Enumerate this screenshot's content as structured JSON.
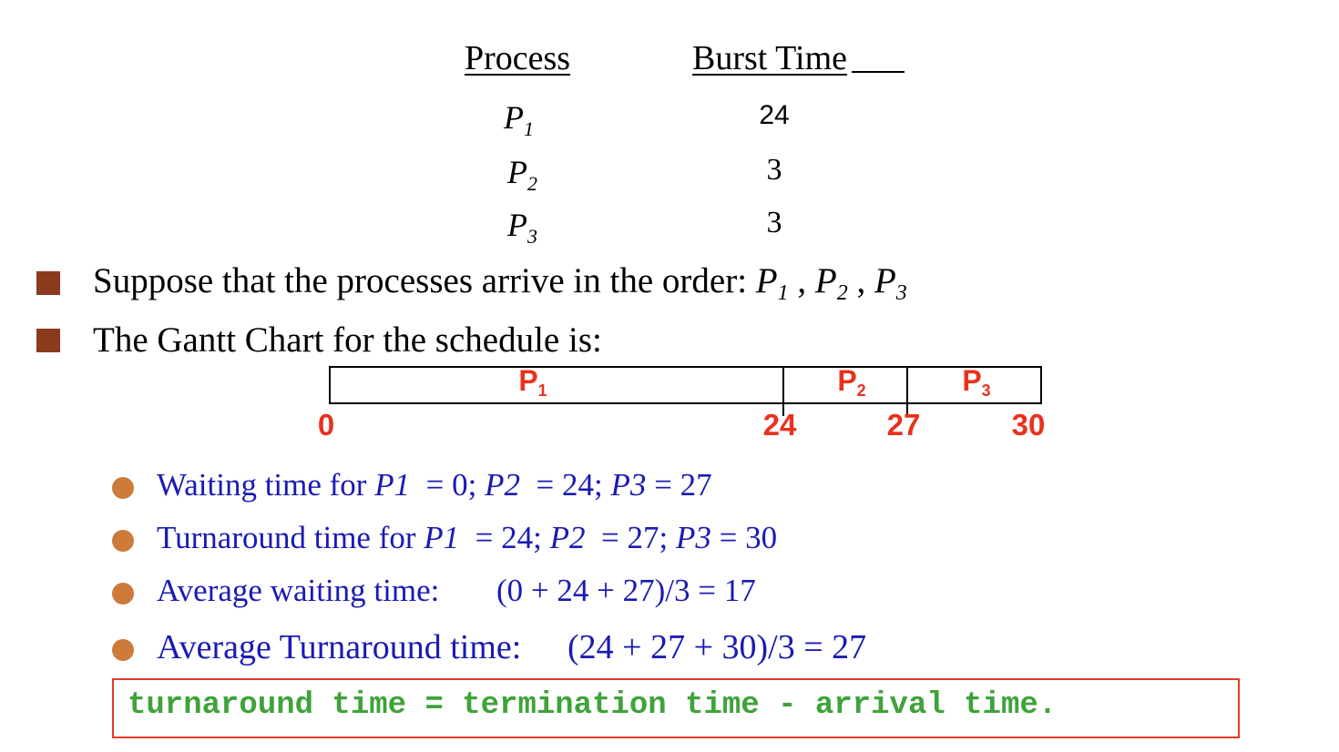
{
  "table": {
    "col_process": "Process",
    "col_burst": "Burst Time",
    "rows": [
      {
        "process": "P",
        "sub": "1",
        "burst": "24"
      },
      {
        "process": "P",
        "sub": "2",
        "burst": "3"
      },
      {
        "process": "P",
        "sub": "3",
        "burst": "3"
      }
    ]
  },
  "bullets": {
    "arrival_prefix": "Suppose that the processes arrive in the order: ",
    "arrival_seq": [
      {
        "p": "P",
        "sub": "1"
      },
      {
        "p": "P",
        "sub": "2"
      },
      {
        "p": "P",
        "sub": "3"
      }
    ],
    "arrival_sep": " , ",
    "gantt_intro": "The Gantt Chart for the schedule is:"
  },
  "gantt": {
    "segments": [
      {
        "label": "P",
        "sub": "1",
        "start": 0,
        "end": 24
      },
      {
        "label": "P",
        "sub": "2",
        "start": 24,
        "end": 27
      },
      {
        "label": "P",
        "sub": "3",
        "start": 27,
        "end": 30
      }
    ],
    "ticks": [
      "0",
      "24",
      "27",
      "30"
    ],
    "colors": {
      "label": "#e8321e",
      "border": "#000000"
    }
  },
  "results": {
    "waiting": {
      "prefix": "Waiting time for ",
      "p1": "P1",
      "v1": "  = 0; ",
      "p2": "P2",
      "v2": "  = 24; ",
      "p3": "P3",
      "v3": " = 27"
    },
    "turnaround": {
      "prefix": "Turnaround time for ",
      "p1": "P1",
      "v1": "  = 24; ",
      "p2": "P2",
      "v2": "  = 27; ",
      "p3": "P3",
      "v3": " = 30"
    },
    "avg_waiting": {
      "label": "Average waiting time:",
      "formula": "(0 + 24 + 27)/3 = 17"
    },
    "avg_turnaround": {
      "label": "Average Turnaround time:",
      "formula": "(24 + 27 + 30)/3 = 27"
    }
  },
  "formula_box": {
    "text": "turnaround time = termination time - arrival time.",
    "colors": {
      "text": "#3fa33a",
      "border": "#e23a2a"
    }
  },
  "colors": {
    "square_bullet": "#8b3a1e",
    "dot_bullet": "#cd7a3a",
    "blue_text": "#1a1ab4"
  }
}
